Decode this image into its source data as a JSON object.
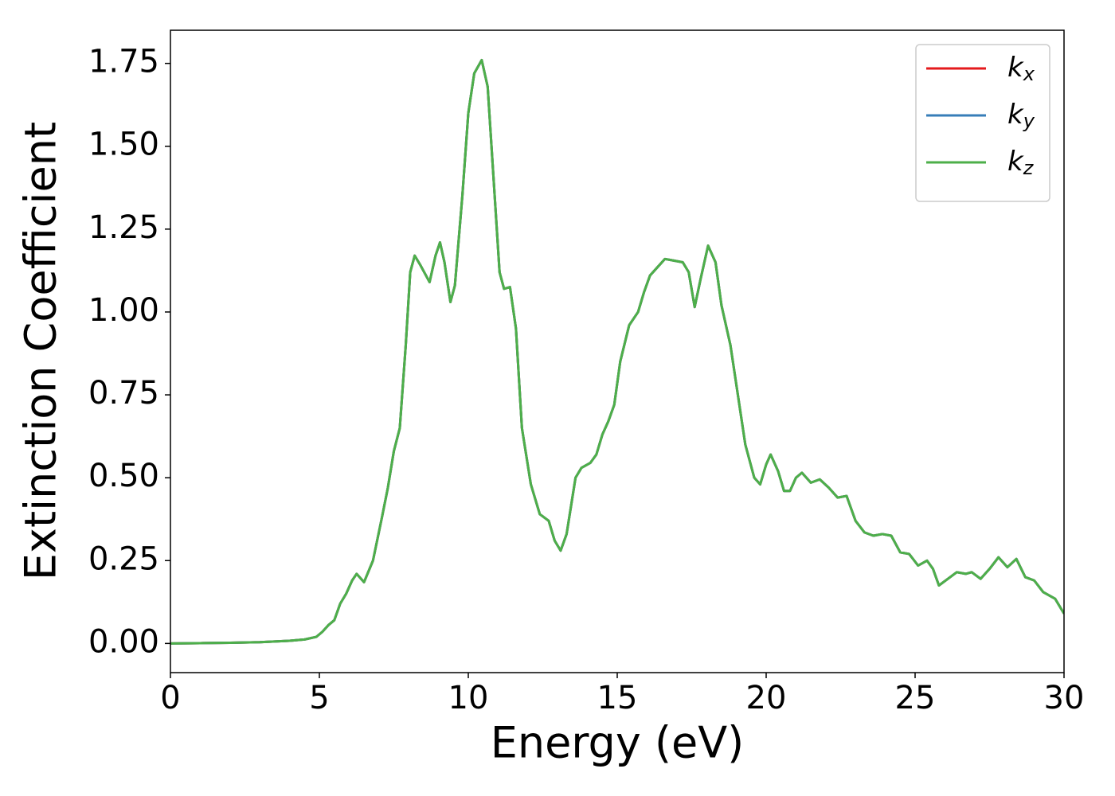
{
  "chart_data": {
    "type": "line",
    "xlabel": "Energy (eV)",
    "ylabel": "Extinction Coefficient",
    "x": [
      0,
      1,
      2,
      3,
      4,
      4.5,
      4.9,
      5.1,
      5.3,
      5.5,
      5.7,
      5.9,
      6.1,
      6.25,
      6.5,
      6.8,
      7.1,
      7.3,
      7.5,
      7.7,
      7.9,
      8.05,
      8.2,
      8.4,
      8.7,
      8.9,
      9.05,
      9.2,
      9.4,
      9.55,
      9.8,
      10.0,
      10.2,
      10.45,
      10.65,
      10.85,
      11.05,
      11.2,
      11.4,
      11.6,
      11.8,
      12.1,
      12.4,
      12.7,
      12.9,
      13.1,
      13.3,
      13.6,
      13.8,
      14.1,
      14.3,
      14.5,
      14.7,
      14.9,
      15.1,
      15.4,
      15.7,
      15.9,
      16.1,
      16.3,
      16.6,
      16.9,
      17.2,
      17.4,
      17.6,
      17.8,
      18.05,
      18.3,
      18.5,
      18.8,
      19.1,
      19.3,
      19.6,
      19.8,
      20.0,
      20.15,
      20.4,
      20.6,
      20.8,
      21.0,
      21.2,
      21.5,
      21.8,
      22.1,
      22.4,
      22.7,
      23.0,
      23.3,
      23.6,
      23.9,
      24.2,
      24.5,
      24.8,
      25.1,
      25.4,
      25.6,
      25.8,
      26.1,
      26.4,
      26.7,
      26.9,
      27.2,
      27.5,
      27.8,
      28.1,
      28.4,
      28.7,
      29.0,
      29.3,
      29.7,
      30
    ],
    "series": [
      {
        "name": "kx",
        "color": "#e41a1c",
        "values": [
          0,
          0.001,
          0.002,
          0.004,
          0.008,
          0.012,
          0.02,
          0.035,
          0.055,
          0.07,
          0.12,
          0.15,
          0.19,
          0.21,
          0.185,
          0.25,
          0.38,
          0.47,
          0.58,
          0.65,
          0.9,
          1.12,
          1.17,
          1.14,
          1.09,
          1.17,
          1.21,
          1.15,
          1.03,
          1.08,
          1.35,
          1.6,
          1.72,
          1.76,
          1.68,
          1.4,
          1.12,
          1.07,
          1.075,
          0.95,
          0.65,
          0.48,
          0.39,
          0.37,
          0.31,
          0.28,
          0.33,
          0.5,
          0.53,
          0.545,
          0.57,
          0.63,
          0.67,
          0.72,
          0.85,
          0.96,
          1.0,
          1.06,
          1.11,
          1.13,
          1.16,
          1.155,
          1.15,
          1.12,
          1.015,
          1.1,
          1.2,
          1.15,
          1.02,
          0.9,
          0.72,
          0.6,
          0.5,
          0.48,
          0.54,
          0.57,
          0.52,
          0.46,
          0.46,
          0.5,
          0.515,
          0.485,
          0.495,
          0.47,
          0.44,
          0.445,
          0.37,
          0.335,
          0.325,
          0.33,
          0.325,
          0.275,
          0.27,
          0.235,
          0.25,
          0.225,
          0.175,
          0.195,
          0.215,
          0.21,
          0.215,
          0.195,
          0.225,
          0.26,
          0.23,
          0.255,
          0.2,
          0.19,
          0.155,
          0.135,
          0.09
        ]
      },
      {
        "name": "ky",
        "color": "#377eb8",
        "values": [
          0,
          0.001,
          0.002,
          0.004,
          0.008,
          0.012,
          0.02,
          0.035,
          0.055,
          0.07,
          0.12,
          0.15,
          0.19,
          0.21,
          0.185,
          0.25,
          0.38,
          0.47,
          0.58,
          0.65,
          0.9,
          1.12,
          1.17,
          1.14,
          1.09,
          1.17,
          1.21,
          1.15,
          1.03,
          1.08,
          1.35,
          1.6,
          1.72,
          1.76,
          1.68,
          1.4,
          1.12,
          1.07,
          1.075,
          0.95,
          0.65,
          0.48,
          0.39,
          0.37,
          0.31,
          0.28,
          0.33,
          0.5,
          0.53,
          0.545,
          0.57,
          0.63,
          0.67,
          0.72,
          0.85,
          0.96,
          1.0,
          1.06,
          1.11,
          1.13,
          1.16,
          1.155,
          1.15,
          1.12,
          1.015,
          1.1,
          1.2,
          1.15,
          1.02,
          0.9,
          0.72,
          0.6,
          0.5,
          0.48,
          0.54,
          0.57,
          0.52,
          0.46,
          0.46,
          0.5,
          0.515,
          0.485,
          0.495,
          0.47,
          0.44,
          0.445,
          0.37,
          0.335,
          0.325,
          0.33,
          0.325,
          0.275,
          0.27,
          0.235,
          0.25,
          0.225,
          0.175,
          0.195,
          0.215,
          0.21,
          0.215,
          0.195,
          0.225,
          0.26,
          0.23,
          0.255,
          0.2,
          0.19,
          0.155,
          0.135,
          0.09
        ]
      },
      {
        "name": "kz",
        "color": "#4daf4a",
        "values": [
          0,
          0.001,
          0.002,
          0.004,
          0.008,
          0.012,
          0.02,
          0.035,
          0.055,
          0.07,
          0.12,
          0.15,
          0.19,
          0.21,
          0.185,
          0.25,
          0.38,
          0.47,
          0.58,
          0.65,
          0.9,
          1.12,
          1.17,
          1.14,
          1.09,
          1.17,
          1.21,
          1.15,
          1.03,
          1.08,
          1.35,
          1.6,
          1.72,
          1.76,
          1.68,
          1.4,
          1.12,
          1.07,
          1.075,
          0.95,
          0.65,
          0.48,
          0.39,
          0.37,
          0.31,
          0.28,
          0.33,
          0.5,
          0.53,
          0.545,
          0.57,
          0.63,
          0.67,
          0.72,
          0.85,
          0.96,
          1.0,
          1.06,
          1.11,
          1.13,
          1.16,
          1.155,
          1.15,
          1.12,
          1.015,
          1.1,
          1.2,
          1.15,
          1.02,
          0.9,
          0.72,
          0.6,
          0.5,
          0.48,
          0.54,
          0.57,
          0.52,
          0.46,
          0.46,
          0.5,
          0.515,
          0.485,
          0.495,
          0.47,
          0.44,
          0.445,
          0.37,
          0.335,
          0.325,
          0.33,
          0.325,
          0.275,
          0.27,
          0.235,
          0.25,
          0.225,
          0.175,
          0.195,
          0.215,
          0.21,
          0.215,
          0.195,
          0.225,
          0.26,
          0.23,
          0.255,
          0.2,
          0.19,
          0.155,
          0.135,
          0.09
        ]
      }
    ],
    "xlim": [
      0,
      30
    ],
    "xticks": [
      0,
      5,
      10,
      15,
      20,
      25,
      30
    ],
    "ylim": [
      -0.088,
      1.85
    ],
    "yticks": [
      {
        "value": 0,
        "label": "0.00"
      },
      {
        "value": 0.25,
        "label": "0.25"
      },
      {
        "value": 0.5,
        "label": "0.50"
      },
      {
        "value": 0.75,
        "label": "0.75"
      },
      {
        "value": 1,
        "label": "1.00"
      },
      {
        "value": 1.25,
        "label": "1.25"
      },
      {
        "value": 1.5,
        "label": "1.50"
      },
      {
        "value": 1.75,
        "label": "1.75"
      }
    ],
    "grid": false,
    "legend": "upper right"
  }
}
